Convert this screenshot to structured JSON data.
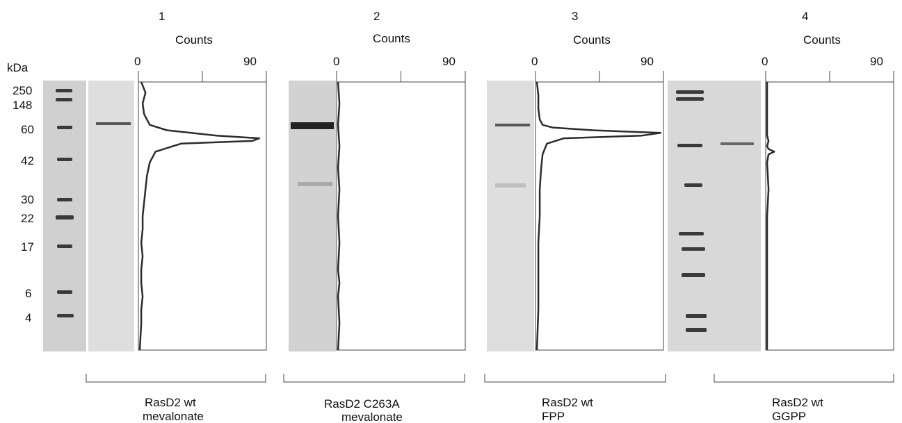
{
  "figure": {
    "mw_unit": "kDa",
    "ladder_labels": [
      "250",
      "148",
      "60",
      "42",
      "30",
      "22",
      "17",
      "6",
      "4"
    ],
    "panels": [
      {
        "number": "1",
        "axis_title": "Counts",
        "ticks": [
          "0",
          "90"
        ],
        "caption": [
          "RasD2 wt",
          "mevalonate"
        ]
      },
      {
        "number": "2",
        "axis_title": "Counts",
        "ticks": [
          "0",
          "90"
        ],
        "caption": [
          "RasD2 C263A",
          "mevalonate"
        ]
      },
      {
        "number": "3",
        "axis_title": "Counts",
        "ticks": [
          "0",
          "90"
        ],
        "caption": [
          "RasD2 wt",
          "FPP"
        ]
      },
      {
        "number": "4",
        "axis_title": "Counts",
        "ticks": [
          "0",
          "90"
        ],
        "caption": [
          "RasD2 wt",
          "GGPP"
        ]
      }
    ]
  },
  "chart_data": [
    {
      "type": "line",
      "title": "1",
      "xlabel": "Counts",
      "xlim": [
        0,
        90
      ],
      "series": [
        {
          "x": [
            2,
            5,
            3,
            4,
            8,
            20,
            55,
            85,
            80,
            30,
            12,
            8,
            6,
            5,
            4,
            3,
            3,
            2,
            3,
            2,
            2,
            3,
            2,
            2,
            1
          ],
          "y": [
            0,
            4,
            8,
            12,
            16,
            18,
            20,
            21,
            22,
            23,
            26,
            30,
            35,
            40,
            45,
            50,
            55,
            60,
            65,
            70,
            75,
            80,
            85,
            90,
            100
          ]
        }
      ]
    },
    {
      "type": "line",
      "title": "2",
      "xlabel": "Counts",
      "xlim": [
        0,
        90
      ],
      "series": [
        {
          "x": [
            1,
            2,
            1,
            2,
            1,
            2,
            1,
            2,
            1,
            2,
            1,
            2,
            1
          ],
          "y": [
            0,
            8,
            16,
            24,
            32,
            40,
            50,
            60,
            70,
            75,
            80,
            90,
            100
          ]
        }
      ]
    },
    {
      "type": "line",
      "title": "3",
      "xlabel": "Counts",
      "xlim": [
        0,
        90
      ],
      "series": [
        {
          "x": [
            1,
            2,
            2,
            3,
            5,
            12,
            40,
            88,
            75,
            20,
            8,
            5,
            4,
            3,
            3,
            2,
            2,
            2,
            1
          ],
          "y": [
            0,
            5,
            10,
            14,
            16,
            17,
            18,
            19,
            20,
            21,
            23,
            27,
            32,
            40,
            50,
            60,
            70,
            85,
            100
          ]
        }
      ]
    },
    {
      "type": "line",
      "title": "4",
      "xlabel": "Counts",
      "xlim": [
        0,
        90
      ],
      "series": [
        {
          "x": [
            1,
            1,
            1,
            1,
            1,
            2,
            1,
            2,
            6,
            2,
            1,
            2,
            1,
            1,
            1,
            1,
            1
          ],
          "y": [
            0,
            5,
            10,
            15,
            20,
            22,
            24,
            25,
            26,
            27,
            30,
            40,
            50,
            60,
            70,
            85,
            100
          ]
        }
      ]
    }
  ],
  "style": {
    "trace_color": "#2b2b2b",
    "gel_color": "#cfcfcf",
    "band_color": "#3a3a3a"
  }
}
